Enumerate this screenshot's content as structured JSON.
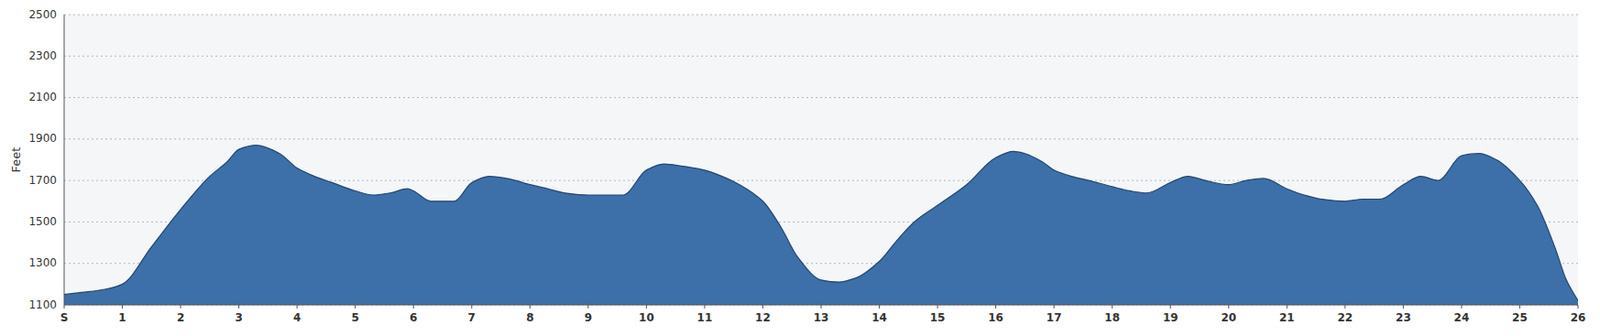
{
  "chart_data": {
    "type": "area",
    "ylabel": "Feet",
    "color": "#3d6fa8",
    "grid": true,
    "x": [
      0,
      0.3,
      0.7,
      1.0,
      1.5,
      2.0,
      2.5,
      2.8,
      3.0,
      3.3,
      3.7,
      4.0,
      4.3,
      4.6,
      5.0,
      5.3,
      5.6,
      5.9,
      6.0,
      6.3,
      6.7,
      7.0,
      7.3,
      7.6,
      8.0,
      8.3,
      8.6,
      9.0,
      9.3,
      9.6,
      10.0,
      10.3,
      10.6,
      11.0,
      11.3,
      11.6,
      12.0,
      12.3,
      12.6,
      13.0,
      13.3,
      13.6,
      14.0,
      14.3,
      14.6,
      15.0,
      15.5,
      16.0,
      16.3,
      16.5,
      16.8,
      17.0,
      17.3,
      17.6,
      18.0,
      18.3,
      18.6,
      19.0,
      19.3,
      19.6,
      20.0,
      20.3,
      20.6,
      21.0,
      21.3,
      21.6,
      22.0,
      22.3,
      22.6,
      23.0,
      23.3,
      23.6,
      24.0,
      24.3,
      24.6,
      25.0,
      25.3,
      25.6,
      25.8,
      26.0
    ],
    "values": [
      1150,
      1160,
      1175,
      1200,
      1380,
      1560,
      1720,
      1790,
      1850,
      1870,
      1830,
      1760,
      1720,
      1690,
      1650,
      1630,
      1640,
      1660,
      1650,
      1600,
      1600,
      1690,
      1720,
      1710,
      1680,
      1660,
      1640,
      1630,
      1630,
      1630,
      1750,
      1780,
      1770,
      1750,
      1720,
      1680,
      1600,
      1480,
      1330,
      1220,
      1210,
      1230,
      1310,
      1410,
      1500,
      1580,
      1680,
      1810,
      1840,
      1830,
      1790,
      1750,
      1720,
      1700,
      1670,
      1650,
      1640,
      1690,
      1720,
      1700,
      1680,
      1700,
      1710,
      1660,
      1630,
      1610,
      1600,
      1610,
      1610,
      1680,
      1720,
      1700,
      1820,
      1830,
      1800,
      1700,
      1580,
      1380,
      1220,
      1120
    ],
    "xlim": [
      0,
      26
    ],
    "xticks": [
      {
        "value": 0,
        "label": "S"
      },
      1,
      2,
      3,
      4,
      5,
      6,
      7,
      8,
      9,
      10,
      11,
      12,
      13,
      14,
      15,
      16,
      17,
      18,
      19,
      20,
      21,
      22,
      23,
      24,
      25,
      26
    ],
    "ylim": [
      1100,
      2500
    ],
    "yticks": [
      1100,
      1300,
      1500,
      1700,
      1900,
      2100,
      2300,
      2500
    ]
  }
}
